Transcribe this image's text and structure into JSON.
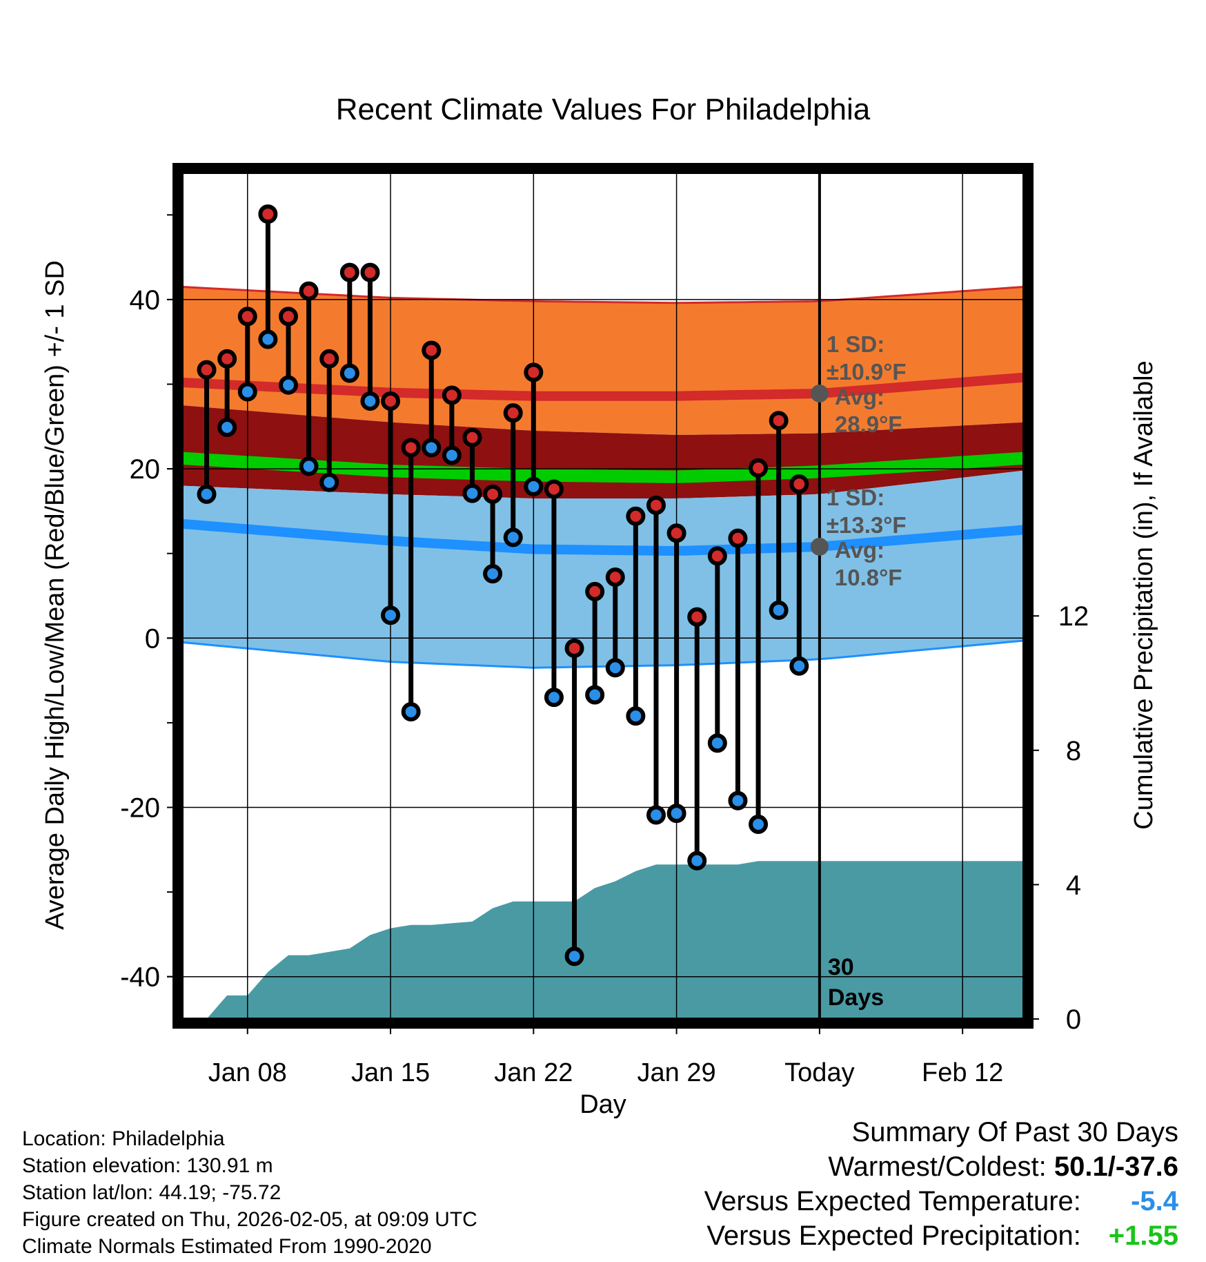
{
  "chart_data": {
    "type": "line",
    "title": "Recent Climate Values For Philadelphia",
    "xlabel": "Day",
    "ylabel_left": "Average Daily High/Low/Mean (Red/Blue/Green) +/- 1 SD",
    "ylabel_right": "Cumulative Precipitation (in), If Available",
    "x_range_days": [
      -31.2,
      10
    ],
    "ylim_left": [
      -45,
      55
    ],
    "ylim_right": [
      0,
      25.2
    ],
    "x_ticks": [
      {
        "day": -28,
        "label": "Jan 08"
      },
      {
        "day": -21,
        "label": "Jan 15"
      },
      {
        "day": -14,
        "label": "Jan 22"
      },
      {
        "day": -7,
        "label": "Jan 29"
      },
      {
        "day": 0,
        "label": "Today"
      },
      {
        "day": 7,
        "label": "Feb 12"
      }
    ],
    "y_ticks_left": [
      -40,
      -20,
      0,
      20,
      40
    ],
    "y_ticks_right": [
      0,
      4,
      8,
      12
    ],
    "normals": {
      "days": [
        -31.2,
        -21,
        -14,
        -7,
        0,
        10
      ],
      "high_upper": [
        41.5,
        40.2,
        39.8,
        39.6,
        39.8,
        41.5
      ],
      "high_mean": [
        30.2,
        29.0,
        28.6,
        28.6,
        28.9,
        30.8
      ],
      "high_lower": [
        27.5,
        25.5,
        24.5,
        24.0,
        24.2,
        25.5
      ],
      "mean_upper": [
        22.0,
        20.5,
        20.0,
        19.8,
        20.4,
        22.0
      ],
      "mean_lower": [
        20.5,
        19.0,
        18.5,
        18.3,
        18.9,
        20.5
      ],
      "low_upper": [
        18.0,
        17.0,
        16.5,
        16.5,
        17.0,
        19.8
      ],
      "low_mean": [
        13.5,
        11.5,
        10.5,
        10.3,
        10.8,
        12.8
      ],
      "low_lower": [
        -0.5,
        -2.8,
        -3.5,
        -3.2,
        -2.5,
        -0.3
      ]
    },
    "series": [
      {
        "name": "High",
        "color": "#d32a2a",
        "days": [
          -30,
          -29,
          -28,
          -27,
          -26,
          -25,
          -24,
          -23,
          -22,
          -21,
          -20,
          -19,
          -18,
          -17,
          -16,
          -15,
          -14,
          -13,
          -12,
          -11,
          -10,
          -9,
          -8,
          -7,
          -6,
          -5,
          -4,
          -3,
          -2,
          -1
        ],
        "values": [
          31.7,
          33.0,
          38.0,
          50.1,
          38.0,
          41.0,
          33.0,
          43.2,
          43.2,
          28.0,
          22.5,
          34.0,
          28.7,
          23.7,
          17.0,
          26.6,
          31.4,
          17.6,
          -1.2,
          5.5,
          7.2,
          14.4,
          15.7,
          12.4,
          2.5,
          9.7,
          11.8,
          20.1,
          25.7,
          18.2
        ]
      },
      {
        "name": "Low",
        "color": "#2a8fe8",
        "days": [
          -30,
          -29,
          -28,
          -27,
          -26,
          -25,
          -24,
          -23,
          -22,
          -21,
          -20,
          -19,
          -18,
          -17,
          -16,
          -15,
          -14,
          -13,
          -12,
          -11,
          -10,
          -9,
          -8,
          -7,
          -6,
          -5,
          -4,
          -3,
          -2,
          -1
        ],
        "values": [
          17.0,
          24.9,
          29.1,
          35.3,
          29.9,
          20.3,
          18.4,
          31.3,
          28.0,
          2.7,
          -8.7,
          22.5,
          21.6,
          17.1,
          7.6,
          11.9,
          17.9,
          -7.0,
          -37.6,
          -6.7,
          -3.5,
          -9.2,
          -20.9,
          -20.7,
          -26.3,
          -12.4,
          -19.2,
          -22.0,
          3.3,
          -3.3
        ]
      }
    ],
    "precip": {
      "name": "Cumulative precipitation",
      "color": "#4a9aa4",
      "days": [
        -31.2,
        -30,
        -29,
        -28,
        -27,
        -26,
        -25,
        -24,
        -23,
        -22,
        -21,
        -20,
        -19,
        -18,
        -17,
        -16,
        -15,
        -14,
        -13,
        -12,
        -11,
        -10,
        -9,
        -8,
        -7,
        -6,
        -5,
        -4,
        -3,
        -2,
        -1,
        0,
        10
      ],
      "values": [
        0,
        0,
        0.7,
        0.7,
        1.4,
        1.9,
        1.9,
        2.0,
        2.1,
        2.5,
        2.7,
        2.8,
        2.8,
        2.85,
        2.9,
        3.3,
        3.5,
        3.5,
        3.5,
        3.5,
        3.9,
        4.1,
        4.4,
        4.6,
        4.6,
        4.6,
        4.6,
        4.6,
        4.7,
        4.7,
        4.7,
        4.7,
        4.7
      ]
    },
    "annotations": {
      "high_sd": "1 SD:",
      "high_sd_val": "±10.9°F",
      "high_avg": "Avg:",
      "high_avg_val": "28.9°F",
      "high_avg_value": 28.9,
      "low_sd": "1 SD:",
      "low_sd_val": "±13.3°F",
      "low_avg": "Avg:",
      "low_avg_val": "10.8°F",
      "low_avg_value": 10.8,
      "days_line1": "30",
      "days_line2": "Days"
    },
    "colors": {
      "high_band": "#f47b2e",
      "high_line": "#d32a2a",
      "mid_band": "#8e1010",
      "mean_band": "#00cc00",
      "low_band": "#80c0e6",
      "low_line": "#1e90ff",
      "precip_fill": "#4a9aa4",
      "annotation_text": "#555555"
    }
  },
  "info": {
    "location": "Location: Philadelphia",
    "elevation": "Station elevation: 130.91 m",
    "latlon": "Station lat/lon: 44.19; -75.72",
    "created": "Figure created on Thu, 2026-02-05, at 09:09 UTC",
    "normals": "Climate Normals Estimated From 1990-2020"
  },
  "summary": {
    "heading": "Summary Of Past 30 Days",
    "warm_cold_label": "Warmest/Coldest:",
    "warm_cold_value": "50.1/-37.6",
    "temp_label": "Versus Expected Temperature:",
    "temp_value": "-5.4",
    "precip_label": "Versus Expected Precipitation:",
    "precip_value": "+1.55"
  }
}
